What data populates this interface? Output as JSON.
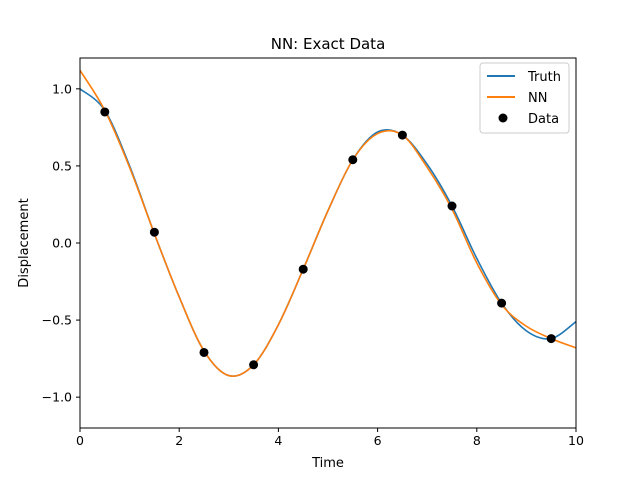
{
  "chart_data": {
    "type": "line",
    "title": "NN: Exact Data",
    "xlabel": "Time",
    "ylabel": "Displacement",
    "xlim": [
      0,
      10
    ],
    "ylim": [
      -1.2,
      1.2
    ],
    "xticks": [
      0,
      2,
      4,
      6,
      8,
      10
    ],
    "xtick_labels": [
      "0",
      "2",
      "4",
      "6",
      "8",
      "10"
    ],
    "yticks": [
      -1.0,
      -0.5,
      0.0,
      0.5,
      1.0
    ],
    "ytick_labels": [
      "−1.0",
      "−0.5",
      "0.0",
      "0.5",
      "1.0"
    ],
    "grid": false,
    "legend_position": "top-right",
    "series": [
      {
        "name": "Truth",
        "kind": "line",
        "color": "#1f77b4",
        "x": [
          0,
          0.5,
          1.0,
          1.5,
          2.0,
          2.5,
          3.0,
          3.5,
          4.0,
          4.5,
          5.0,
          5.5,
          6.0,
          6.5,
          7.0,
          7.5,
          8.0,
          8.5,
          9.0,
          9.5,
          10.0
        ],
        "y": [
          1.0,
          0.86,
          0.5,
          0.06,
          -0.35,
          -0.7,
          -0.86,
          -0.79,
          -0.53,
          -0.17,
          0.21,
          0.54,
          0.72,
          0.7,
          0.51,
          0.24,
          -0.1,
          -0.39,
          -0.57,
          -0.62,
          -0.51
        ]
      },
      {
        "name": "NN",
        "kind": "line",
        "color": "#ff7f0e",
        "x": [
          0,
          0.5,
          1.0,
          1.5,
          2.0,
          2.5,
          3.0,
          3.5,
          4.0,
          4.5,
          5.0,
          5.5,
          6.0,
          6.5,
          7.0,
          7.5,
          8.0,
          8.5,
          9.0,
          9.5,
          10.0
        ],
        "y": [
          1.12,
          0.86,
          0.49,
          0.06,
          -0.35,
          -0.7,
          -0.86,
          -0.79,
          -0.53,
          -0.17,
          0.21,
          0.54,
          0.71,
          0.7,
          0.49,
          0.22,
          -0.13,
          -0.4,
          -0.54,
          -0.62,
          -0.68
        ]
      },
      {
        "name": "Data",
        "kind": "scatter",
        "color": "#000000",
        "x": [
          0.5,
          1.5,
          2.5,
          3.5,
          4.5,
          5.5,
          6.5,
          7.5,
          8.5,
          9.5
        ],
        "y": [
          0.85,
          0.07,
          -0.71,
          -0.79,
          -0.17,
          0.54,
          0.7,
          0.24,
          -0.39,
          -0.62
        ]
      }
    ]
  }
}
